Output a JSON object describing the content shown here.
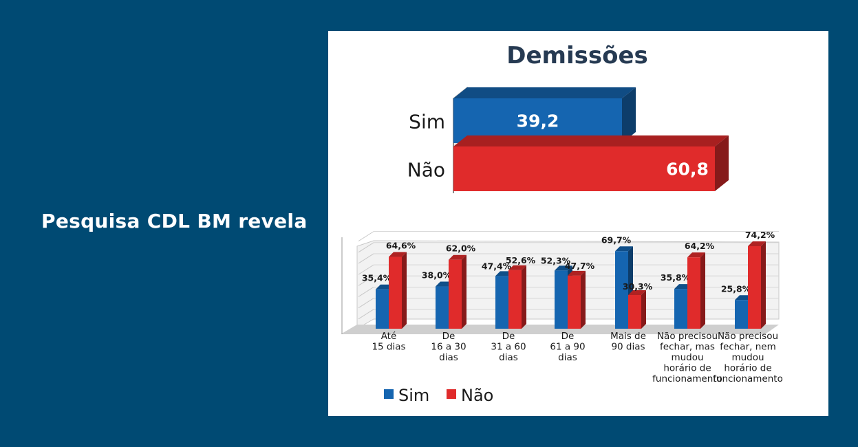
{
  "headline": "Pesquisa CDL BM revela",
  "colors": {
    "background": "#004a73",
    "sim": "#1565b0",
    "nao": "#e02b2b"
  },
  "chart_data": [
    {
      "type": "bar",
      "orientation": "horizontal",
      "title": "Demissões",
      "categories": [
        "Sim",
        "Não"
      ],
      "values": [
        39.2,
        60.8
      ],
      "value_labels": [
        "39,2",
        "60,8"
      ],
      "xlim": [
        0,
        100
      ]
    },
    {
      "type": "bar",
      "orientation": "vertical",
      "categories": [
        [
          "Até",
          "15 dias"
        ],
        [
          "De",
          "16 a 30",
          "dias"
        ],
        [
          "De",
          "31 a 60",
          "dias"
        ],
        [
          "De",
          "61 a 90",
          "dias"
        ],
        [
          "Mais de",
          "90 dias"
        ],
        [
          "Não precisou",
          "fechar, mas",
          "mudou",
          "horário de",
          "funcionamento"
        ],
        [
          "Não precisou",
          "fechar, nem",
          "mudou",
          "horário de",
          "funcionamento"
        ]
      ],
      "series": [
        {
          "name": "Sim",
          "values": [
            35.4,
            38.0,
            47.4,
            52.3,
            69.7,
            35.8,
            25.8
          ],
          "labels": [
            "35,4%",
            "38,0%",
            "47,4%",
            "52,3%",
            "69,7%",
            "35,8%",
            "25,8%"
          ]
        },
        {
          "name": "Não",
          "values": [
            64.6,
            62.0,
            52.6,
            47.7,
            30.3,
            64.2,
            74.2
          ],
          "labels": [
            "64,6%",
            "62,0%",
            "52,6%",
            "47,7%",
            "30,3%",
            "64,2%",
            "74,2%"
          ]
        }
      ],
      "ylim": [
        0,
        80
      ],
      "grid": true,
      "legend": "bottom-left"
    }
  ]
}
